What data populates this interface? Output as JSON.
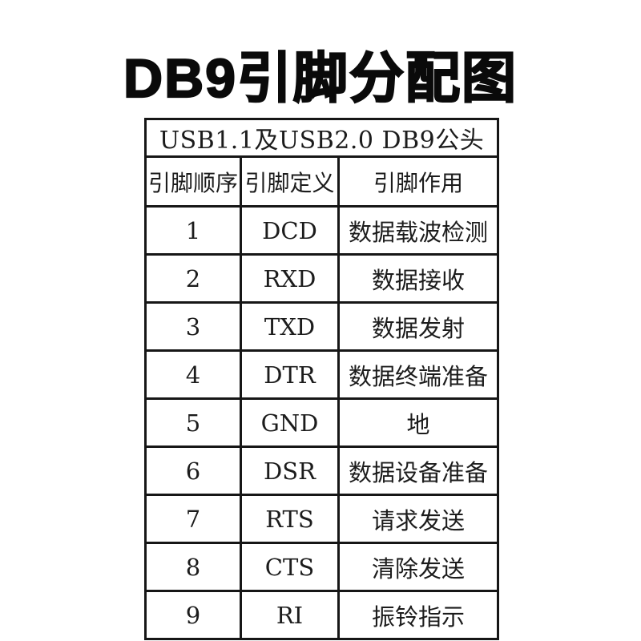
{
  "page": {
    "title": "DB9引脚分配图",
    "background_color": "#ffffff",
    "title_color": "#0a0a0a",
    "border_color": "#161616",
    "text_color": "#1c1c1c"
  },
  "table": {
    "caption": "USB1.1及USB2.0 DB9公头",
    "columns": [
      "引脚顺序",
      "引脚定义",
      "引脚作用"
    ],
    "rows": [
      {
        "pin": "1",
        "definition": "DCD",
        "function": "数据载波检测"
      },
      {
        "pin": "2",
        "definition": "RXD",
        "function": "数据接收"
      },
      {
        "pin": "3",
        "definition": "TXD",
        "function": "数据发射"
      },
      {
        "pin": "4",
        "definition": "DTR",
        "function": "数据终端准备"
      },
      {
        "pin": "5",
        "definition": "GND",
        "function": "地"
      },
      {
        "pin": "6",
        "definition": "DSR",
        "function": "数据设备准备"
      },
      {
        "pin": "7",
        "definition": "RTS",
        "function": "请求发送"
      },
      {
        "pin": "8",
        "definition": "CTS",
        "function": "清除发送"
      },
      {
        "pin": "9",
        "definition": "RI",
        "function": "振铃指示"
      }
    ]
  }
}
